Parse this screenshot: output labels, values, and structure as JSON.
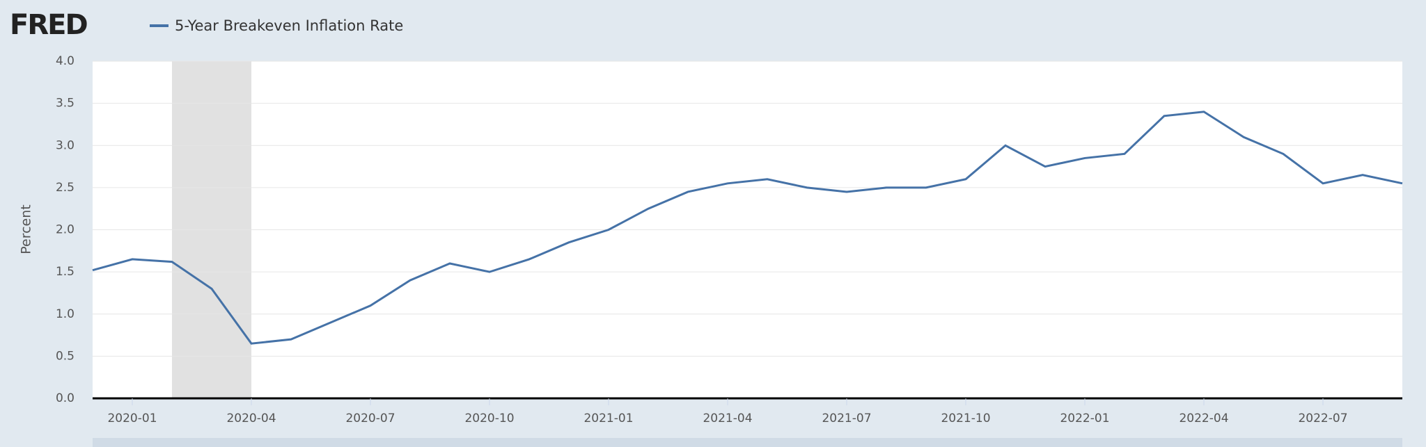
{
  "logo": "FRED",
  "chart_data": {
    "type": "line",
    "y_label": "Percent",
    "x": [
      "2019-12",
      "2020-01",
      "2020-02",
      "2020-03",
      "2020-04",
      "2020-05",
      "2020-06",
      "2020-07",
      "2020-08",
      "2020-09",
      "2020-10",
      "2020-11",
      "2020-12",
      "2021-01",
      "2021-02",
      "2021-03",
      "2021-04",
      "2021-05",
      "2021-06",
      "2021-07",
      "2021-08",
      "2021-09",
      "2021-10",
      "2021-11",
      "2021-12",
      "2022-01",
      "2022-02",
      "2022-03",
      "2022-04",
      "2022-05",
      "2022-06",
      "2022-07",
      "2022-08",
      "2022-09"
    ],
    "series": [
      {
        "name": "5-Year Breakeven Inflation Rate",
        "color": "#4572a7",
        "values": [
          1.52,
          1.65,
          1.62,
          1.3,
          0.65,
          0.7,
          0.9,
          1.1,
          1.4,
          1.6,
          1.5,
          1.65,
          1.85,
          2.0,
          2.25,
          2.45,
          2.55,
          2.6,
          2.5,
          2.45,
          2.5,
          2.5,
          2.6,
          3.0,
          2.75,
          2.85,
          2.9,
          3.35,
          3.4,
          3.1,
          2.9,
          2.55,
          2.65,
          2.55
        ]
      }
    ],
    "xlim": [
      "2019-12",
      "2022-09"
    ],
    "xticks": [
      "2020-01",
      "2020-04",
      "2020-07",
      "2020-10",
      "2021-01",
      "2021-04",
      "2021-07",
      "2021-10",
      "2022-01",
      "2022-04",
      "2022-07"
    ],
    "ylim": [
      0,
      4
    ],
    "yticks": [
      {
        "value": 0,
        "label": "0.0"
      },
      0.5,
      {
        "value": 1,
        "label": "1.0"
      },
      1.5,
      {
        "value": 2,
        "label": "2.0"
      },
      2.5,
      {
        "value": 3,
        "label": "3.0"
      },
      3.5,
      {
        "value": 4,
        "label": "4.0"
      }
    ],
    "shaded_range": [
      "2020-02",
      "2020-04"
    ],
    "grid": true
  }
}
